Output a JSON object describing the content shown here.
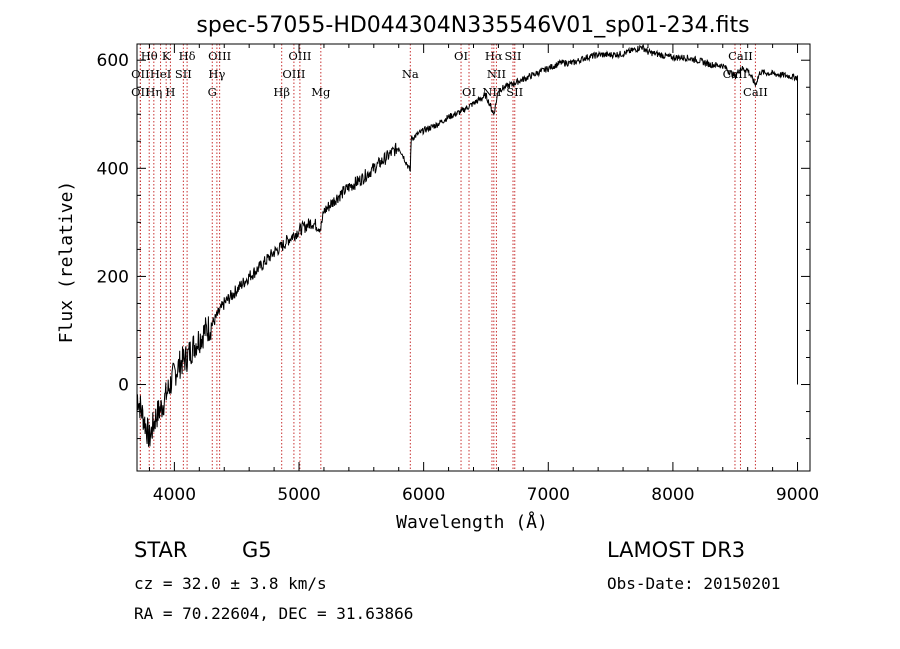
{
  "chart_data": {
    "type": "line",
    "title": "spec-57055-HD044304N335546V01_sp01-234.fits",
    "xlabel": "Wavelength (Å)",
    "ylabel": "Flux (relative)",
    "xlim": [
      3700,
      9100
    ],
    "ylim": [
      -160,
      630
    ],
    "xticks": [
      4000,
      5000,
      6000,
      7000,
      8000,
      9000
    ],
    "yticks": [
      0,
      200,
      400,
      600
    ],
    "series": [
      {
        "name": "flux",
        "color": "#000000",
        "x": [
          3700,
          3750,
          3800,
          3850,
          3900,
          3950,
          4000,
          4050,
          4100,
          4150,
          4200,
          4250,
          4300,
          4350,
          4400,
          4500,
          4600,
          4700,
          4800,
          4861,
          4900,
          5000,
          5100,
          5175,
          5200,
          5300,
          5400,
          5500,
          5600,
          5700,
          5800,
          5893,
          5900,
          6000,
          6100,
          6200,
          6300,
          6400,
          6500,
          6563,
          6600,
          6700,
          6800,
          6900,
          7000,
          7100,
          7200,
          7300,
          7400,
          7500,
          7600,
          7700,
          7750,
          7800,
          7900,
          8000,
          8100,
          8200,
          8300,
          8400,
          8498,
          8542,
          8600,
          8662,
          8700,
          8800,
          8900,
          9000,
          9000
        ],
        "y": [
          -20,
          -60,
          -100,
          -60,
          -40,
          -10,
          20,
          40,
          50,
          70,
          85,
          100,
          110,
          130,
          150,
          175,
          200,
          220,
          245,
          255,
          265,
          285,
          300,
          290,
          320,
          345,
          365,
          380,
          400,
          420,
          440,
          395,
          455,
          470,
          480,
          495,
          505,
          520,
          535,
          500,
          545,
          555,
          565,
          575,
          585,
          595,
          595,
          605,
          610,
          610,
          612,
          620,
          625,
          615,
          610,
          605,
          605,
          600,
          592,
          590,
          570,
          585,
          582,
          555,
          578,
          575,
          572,
          568,
          0
        ]
      }
    ],
    "spectral_lines": [
      {
        "label": "Hθ",
        "x": 3798,
        "row": 1
      },
      {
        "label": "K",
        "x": 3934,
        "row": 1
      },
      {
        "label": "Hδ",
        "x": 4102,
        "row": 1
      },
      {
        "label": "OIII",
        "x": 4363,
        "row": 1
      },
      {
        "label": "OIII",
        "x": 5007,
        "row": 1
      },
      {
        "label": "OI",
        "x": 6300,
        "row": 1
      },
      {
        "label": "Hα",
        "x": 6563,
        "row": 1
      },
      {
        "label": "SII",
        "x": 6717,
        "row": 1
      },
      {
        "label": "CaII",
        "x": 8542,
        "row": 1
      },
      {
        "label": "OII",
        "x": 3727,
        "row": 2
      },
      {
        "label": "HeI",
        "x": 3889,
        "row": 2
      },
      {
        "label": "SII",
        "x": 4072,
        "row": 2
      },
      {
        "label": "Hγ",
        "x": 4341,
        "row": 2
      },
      {
        "label": "OIII",
        "x": 4959,
        "row": 2
      },
      {
        "label": "Na",
        "x": 5893,
        "row": 2
      },
      {
        "label": "NII",
        "x": 6584,
        "row": 2
      },
      {
        "label": "CaII",
        "x": 8498,
        "row": 2
      },
      {
        "label": "OII",
        "x": 3727,
        "row": 3
      },
      {
        "label": "Hη",
        "x": 3835,
        "row": 3
      },
      {
        "label": "H",
        "x": 3968,
        "row": 3
      },
      {
        "label": "G",
        "x": 4304,
        "row": 3
      },
      {
        "label": "Hβ",
        "x": 4861,
        "row": 3
      },
      {
        "label": "Mg",
        "x": 5175,
        "row": 3
      },
      {
        "label": "OI",
        "x": 6364,
        "row": 3
      },
      {
        "label": "NII",
        "x": 6548,
        "row": 3
      },
      {
        "label": "SII",
        "x": 6731,
        "row": 3
      },
      {
        "label": "CaII",
        "x": 8662,
        "row": 3
      }
    ]
  },
  "info": {
    "object_class": "STAR",
    "subclass": "G5",
    "survey": "LAMOST DR3",
    "redshift": "cz = 32.0 ± 3.8 km/s",
    "obs_date": "Obs-Date: 20150201",
    "coords": "RA =  70.22604, DEC =  31.63866"
  }
}
